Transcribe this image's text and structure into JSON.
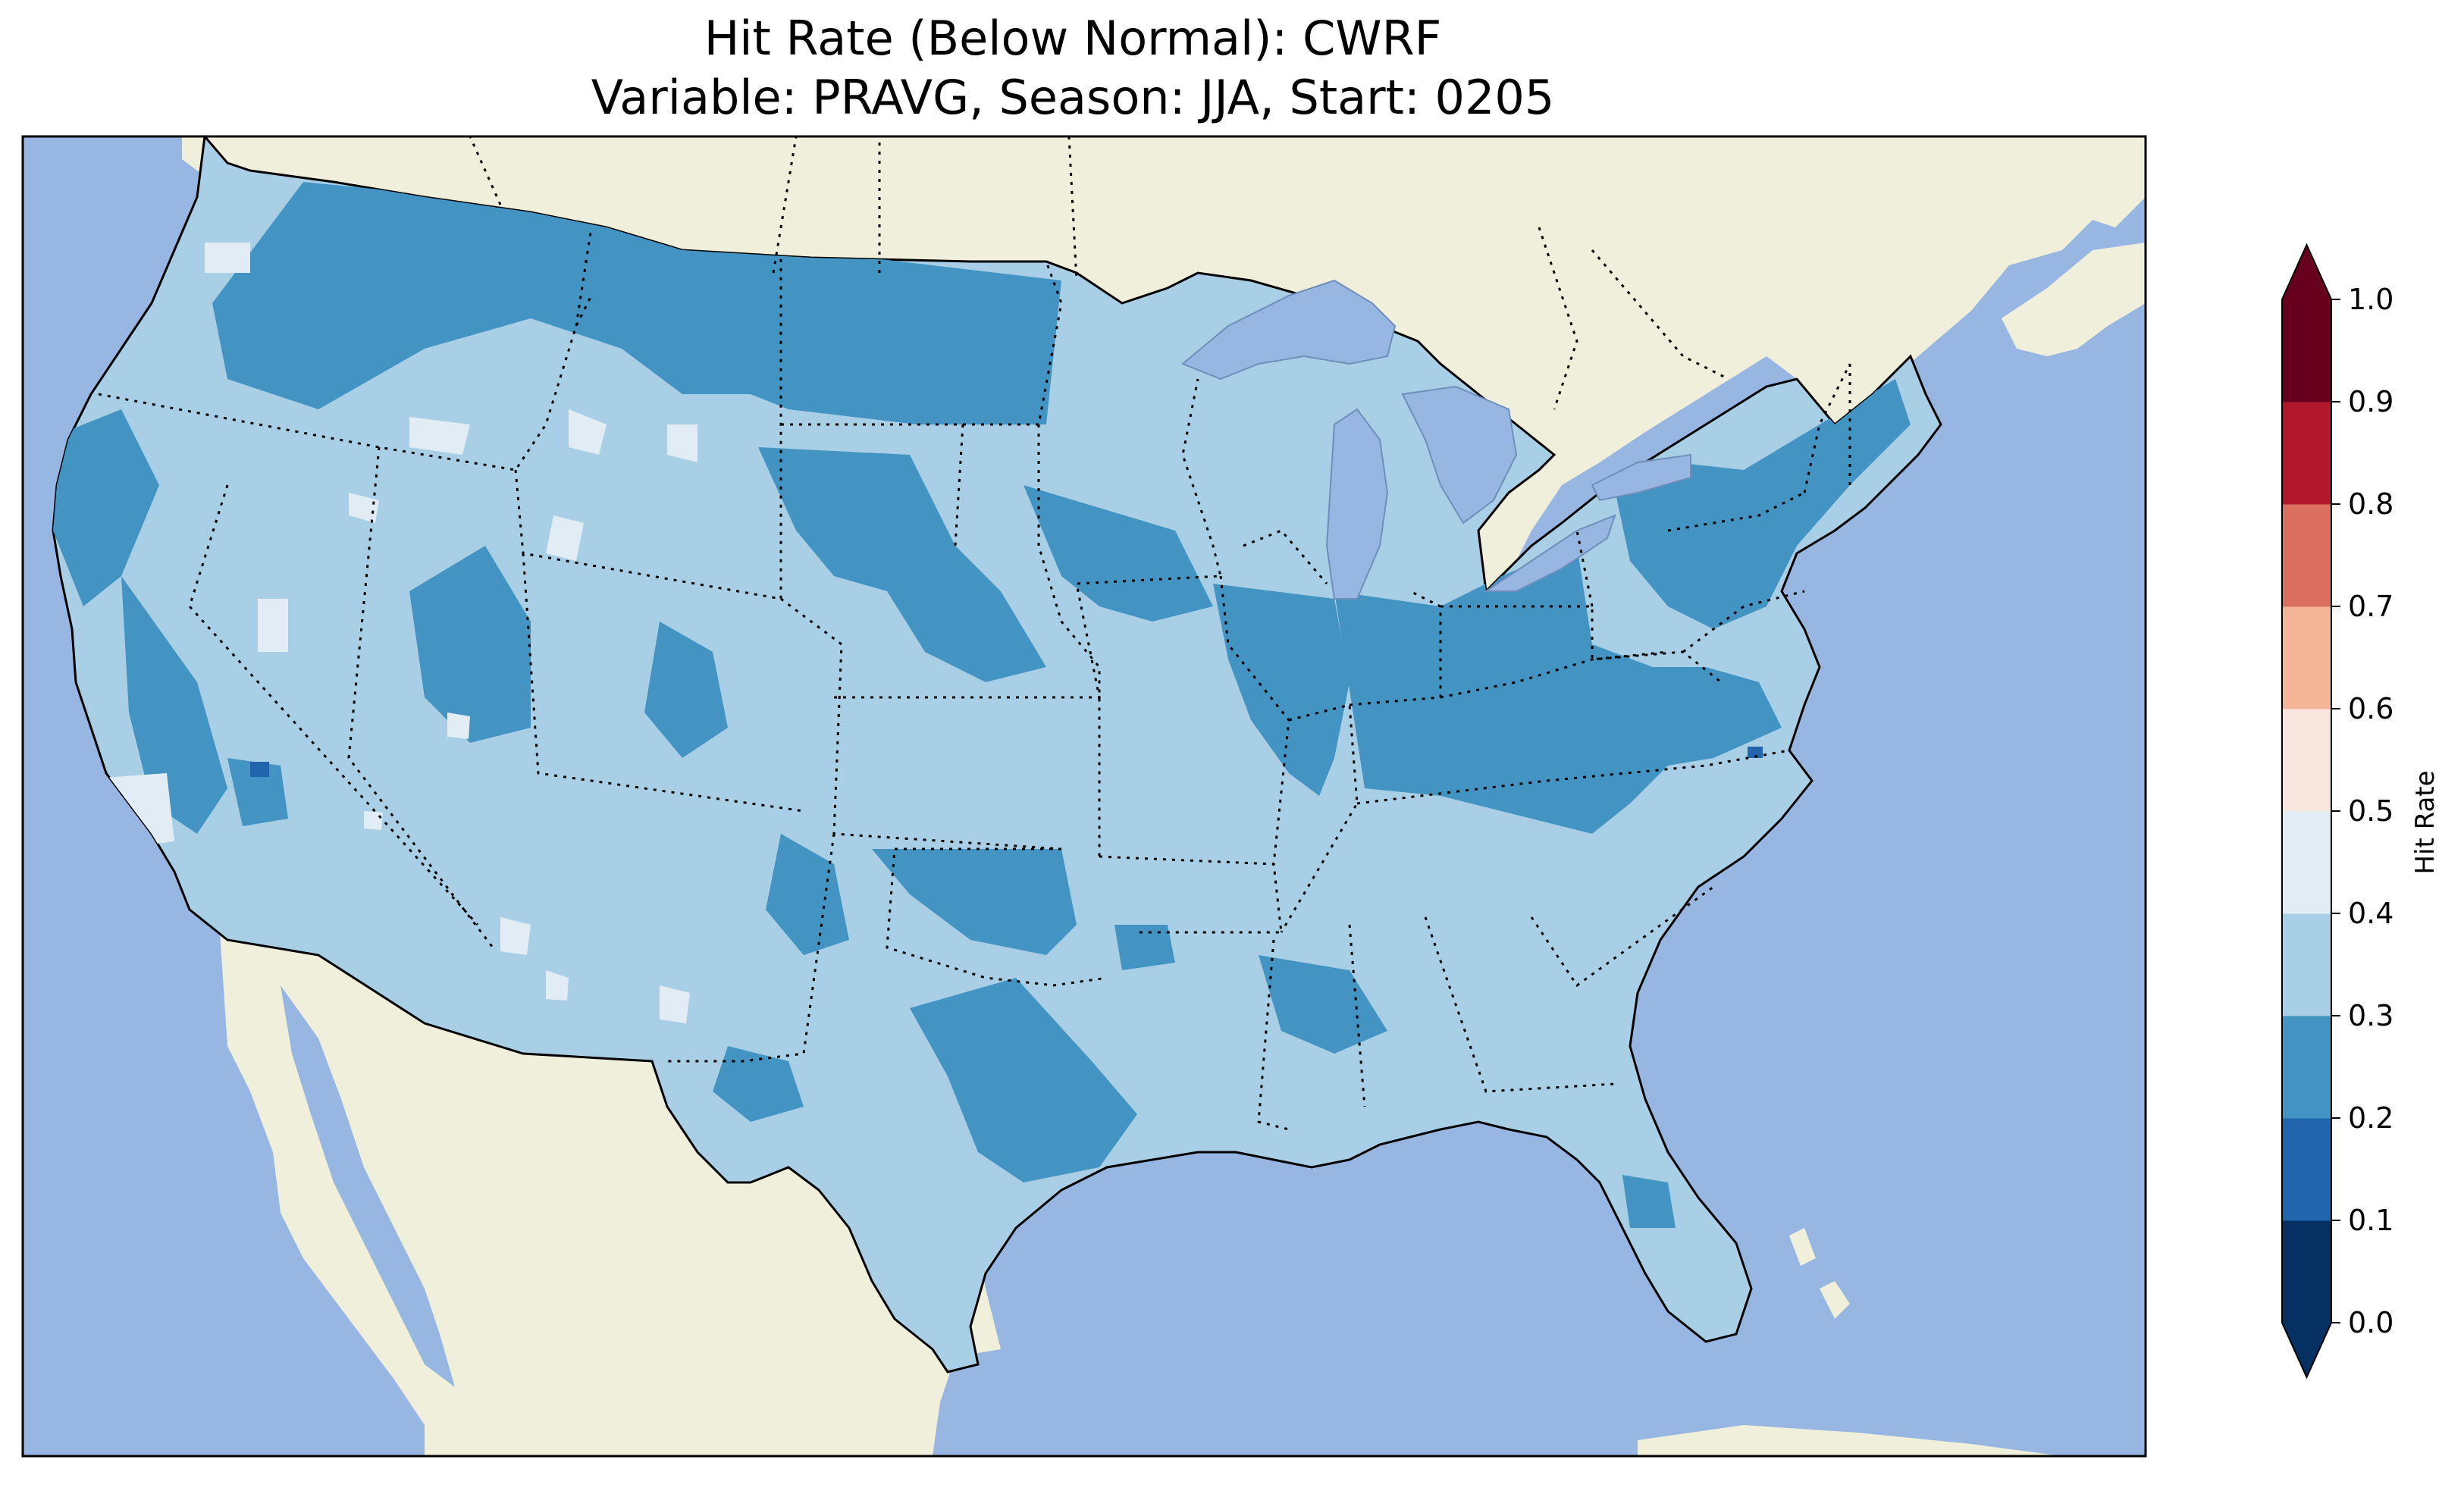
{
  "title": {
    "line1": "Hit Rate (Below Normal): CWRF",
    "line2": "Variable: PRAVG, Season: JJA, Start: 0205"
  },
  "map": {
    "ocean_color": "#97b6e1",
    "land_color": "#efefdb",
    "lake_color": "#97b6e1"
  },
  "colorbar": {
    "label": "Hit Rate",
    "ticks": [
      "0.0",
      "0.1",
      "0.2",
      "0.3",
      "0.4",
      "0.5",
      "0.6",
      "0.7",
      "0.8",
      "0.9",
      "1.0"
    ],
    "bins": [
      {
        "range": [
          0.0,
          0.1
        ],
        "color": "#053061"
      },
      {
        "range": [
          0.1,
          0.2
        ],
        "color": "#2166ac"
      },
      {
        "range": [
          0.2,
          0.3
        ],
        "color": "#4393c3"
      },
      {
        "range": [
          0.3,
          0.4
        ],
        "color": "#a8cfe5"
      },
      {
        "range": [
          0.4,
          0.5
        ],
        "color": "#e1ecf4"
      },
      {
        "range": [
          0.5,
          0.6
        ],
        "color": "#f8e6de"
      },
      {
        "range": [
          0.6,
          0.7
        ],
        "color": "#f4b597"
      },
      {
        "range": [
          0.7,
          0.8
        ],
        "color": "#dc7060"
      },
      {
        "range": [
          0.8,
          0.9
        ],
        "color": "#b2182b"
      },
      {
        "range": [
          0.9,
          1.0
        ],
        "color": "#67001f"
      }
    ],
    "extend": "both"
  }
}
